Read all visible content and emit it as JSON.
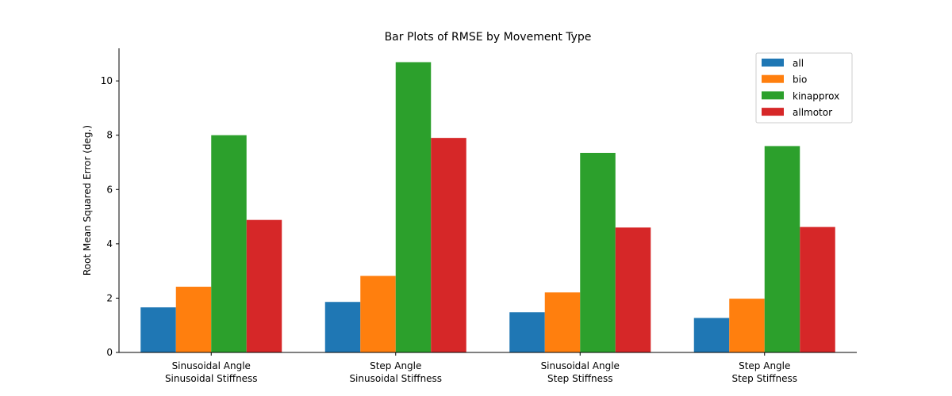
{
  "chart_data": {
    "type": "bar",
    "title": "Bar Plots of RMSE by Movement Type",
    "xlabel": "",
    "ylabel": "Root Mean Squared Error (deg.)",
    "ylim": [
      0,
      11.2
    ],
    "yticks": [
      "0",
      "2",
      "4",
      "6",
      "8",
      "10"
    ],
    "categories": [
      [
        "Sinusoidal Angle",
        "Sinusoidal Stiffness"
      ],
      [
        "Step Angle",
        "Sinusoidal Stiffness"
      ],
      [
        "Sinusoidal Angle",
        "Step Stiffness"
      ],
      [
        "Step Angle",
        "Step Stiffness"
      ]
    ],
    "series": [
      {
        "name": "all",
        "color": "#1f77b4",
        "values": [
          1.66,
          1.86,
          1.48,
          1.27
        ]
      },
      {
        "name": "bio",
        "color": "#ff7f0e",
        "values": [
          2.42,
          2.82,
          2.21,
          1.98
        ]
      },
      {
        "name": "kinapprox",
        "color": "#2ca02c",
        "values": [
          8.0,
          10.69,
          7.35,
          7.6
        ]
      },
      {
        "name": "allmotor",
        "color": "#d62728",
        "values": [
          4.88,
          7.9,
          4.6,
          4.62
        ]
      }
    ],
    "grid": false,
    "legend": "top-right"
  }
}
